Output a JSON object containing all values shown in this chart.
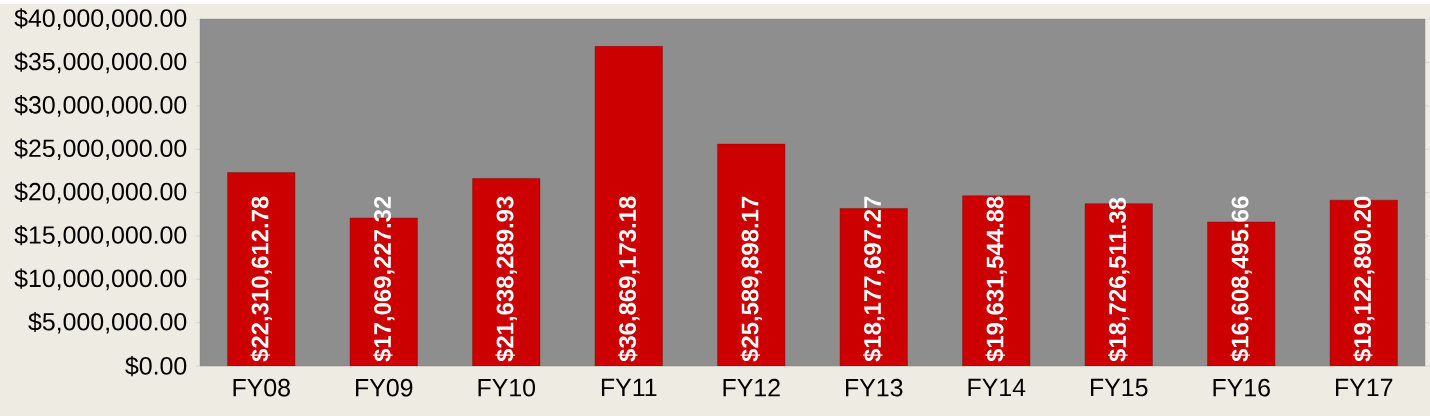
{
  "chart_data": {
    "type": "bar",
    "categories": [
      "FY08",
      "FY09",
      "FY10",
      "FY11",
      "FY12",
      "FY13",
      "FY14",
      "FY15",
      "FY16",
      "FY17"
    ],
    "values": [
      22310612.78,
      17069227.32,
      21638289.93,
      36869173.18,
      25589898.17,
      18177697.27,
      19631544.88,
      18726511.38,
      16608495.66,
      19122890.2
    ],
    "value_labels": [
      "$22,310,612.78",
      "$17,069,227.32",
      "$21,638,289.93",
      "$36,869,173.18",
      "$25,589,898.17",
      "$18,177,697.27",
      "$19,631,544.88",
      "$18,726,511.38",
      "$16,608,495.66",
      "$19,122,890.20"
    ],
    "color": "#cc0000",
    "ylim": [
      0,
      40000000
    ],
    "yticks": [
      {
        "value": 0,
        "label": "$0.00"
      },
      {
        "value": 5000000,
        "label": "$5,000,000.00"
      },
      {
        "value": 10000000,
        "label": "$10,000,000.00"
      },
      {
        "value": 15000000,
        "label": "$15,000,000.00"
      },
      {
        "value": 20000000,
        "label": "$20,000,000.00"
      },
      {
        "value": 25000000,
        "label": "$25,000,000.00"
      },
      {
        "value": 30000000,
        "label": "$30,000,000.00"
      },
      {
        "value": 35000000,
        "label": "$35,000,000.00"
      },
      {
        "value": 40000000,
        "label": "$40,000,000.00"
      }
    ],
    "grid": false
  }
}
